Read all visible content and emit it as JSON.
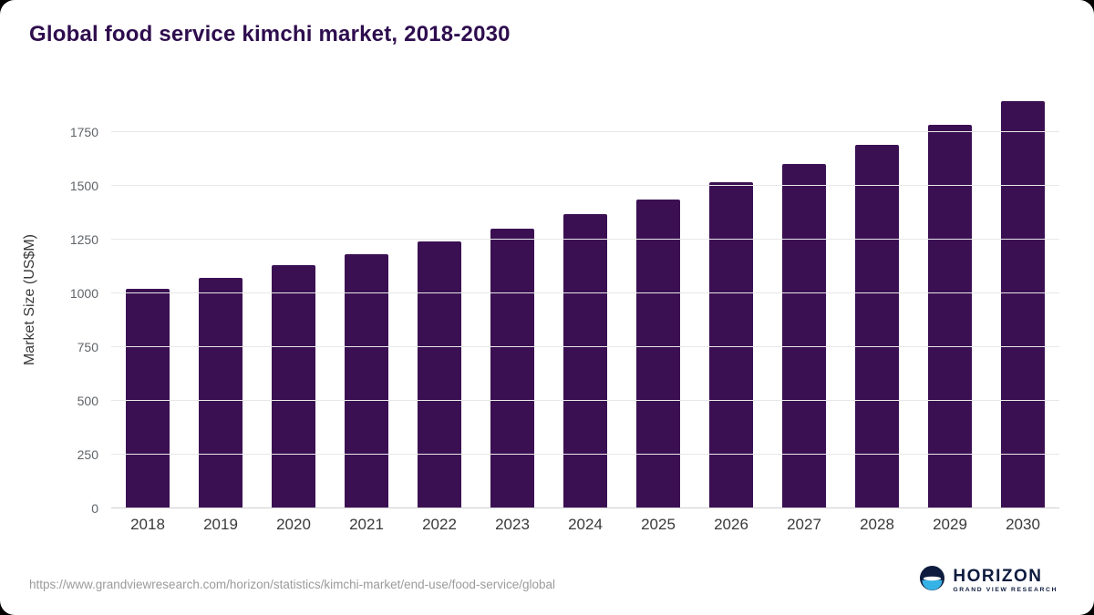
{
  "page": {
    "title": "Global food service kimchi market, 2018-2030",
    "source_url": "https://www.grandviewresearch.com/horizon/statistics/kimchi-market/end-use/food-service/global"
  },
  "logo": {
    "name": "HORIZON",
    "subtitle": "GRAND VIEW RESEARCH"
  },
  "colors": {
    "bar": "#3b1053",
    "title_text": "#2e0d4e",
    "grid": "#e8e8e8",
    "axis_text": "#3a3a3a",
    "tick_text": "#5f6368",
    "footer_text": "#9b9b9b",
    "logo_navy": "#0d1b3e",
    "logo_blue": "#36b3e6"
  },
  "chart_data": {
    "type": "bar",
    "title": "Global food service kimchi market, 2018-2030",
    "categories": [
      "2018",
      "2019",
      "2020",
      "2021",
      "2022",
      "2023",
      "2024",
      "2025",
      "2026",
      "2027",
      "2028",
      "2029",
      "2030"
    ],
    "values": [
      1020,
      1070,
      1130,
      1180,
      1240,
      1300,
      1370,
      1435,
      1515,
      1600,
      1690,
      1785,
      1895
    ],
    "xlabel": "",
    "ylabel": "Market Size (US$M)",
    "ylim": [
      0,
      1940
    ],
    "yticks": [
      0,
      250,
      500,
      750,
      1000,
      1250,
      1500,
      1750
    ],
    "grid": true,
    "legend_position": "none",
    "bar_color": "#3b1053"
  }
}
